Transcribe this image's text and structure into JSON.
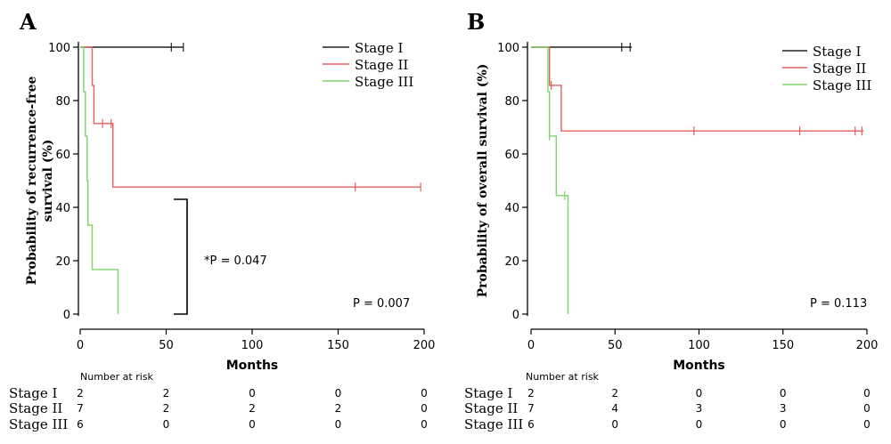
{
  "chart_data": [
    {
      "type": "line",
      "subtype": "kaplan-meier step",
      "panel_label": "A",
      "xlabel": "Months",
      "ylabel_line1": "Probability of recurrence-free",
      "ylabel_line2": "survival (%)",
      "xlim": [
        0,
        200
      ],
      "ylim": [
        0,
        100
      ],
      "xticks": [
        0,
        50,
        100,
        150,
        200
      ],
      "yticks": [
        0,
        20,
        40,
        60,
        80,
        100
      ],
      "grid": false,
      "legend_position": "top-right",
      "series": [
        {
          "name": "Stage I",
          "color": "#222222",
          "steps": [
            [
              0,
              100
            ],
            [
              60,
              100
            ]
          ],
          "censored": [
            [
              53,
              100
            ],
            [
              60,
              100
            ]
          ]
        },
        {
          "name": "Stage II",
          "color": "#e06060",
          "steps": [
            [
              0,
              100
            ],
            [
              7,
              100
            ],
            [
              7,
              85.7
            ],
            [
              8,
              85.7
            ],
            [
              8,
              71.4
            ],
            [
              19,
              71.4
            ],
            [
              19,
              47.6
            ],
            [
              198,
              47.6
            ]
          ],
          "censored": [
            [
              13,
              71.4
            ],
            [
              18,
              71.4
            ],
            [
              160,
              47.6
            ],
            [
              198,
              47.6
            ]
          ]
        },
        {
          "name": "Stage III",
          "color": "#7ed36b",
          "steps": [
            [
              0,
              100
            ],
            [
              2,
              100
            ],
            [
              2,
              83.3
            ],
            [
              3,
              83.3
            ],
            [
              3,
              66.7
            ],
            [
              4,
              66.7
            ],
            [
              4,
              50
            ],
            [
              4.5,
              50
            ],
            [
              4.5,
              33.3
            ],
            [
              7,
              33.3
            ],
            [
              7,
              16.7
            ],
            [
              22,
              16.7
            ],
            [
              22,
              0
            ]
          ],
          "censored": []
        }
      ],
      "annotations": {
        "pairwise_p": "*P = 0.047",
        "p_value": "P = 0.007",
        "bracket_y": [
          0,
          43
        ]
      },
      "risk_table": {
        "title": "Number at risk",
        "timepoints": [
          0,
          50,
          100,
          150,
          200
        ],
        "rows": [
          {
            "label": "Stage I",
            "values": [
              "2",
              "2",
              "0",
              "0",
              "0"
            ]
          },
          {
            "label": "Stage II",
            "values": [
              "7",
              "2",
              "2",
              "2",
              "0"
            ]
          },
          {
            "label": "Stage III",
            "values": [
              "6",
              "0",
              "0",
              "0",
              "0"
            ]
          }
        ]
      }
    },
    {
      "type": "line",
      "subtype": "kaplan-meier step",
      "panel_label": "B",
      "xlabel": "Months",
      "ylabel_line1": "Probability of overall survival (%)",
      "ylabel_line2": "",
      "xlim": [
        0,
        200
      ],
      "ylim": [
        0,
        100
      ],
      "xticks": [
        0,
        50,
        100,
        150,
        200
      ],
      "yticks": [
        0,
        20,
        40,
        60,
        80,
        100
      ],
      "grid": false,
      "legend_position": "top-right",
      "series": [
        {
          "name": "Stage I",
          "color": "#222222",
          "steps": [
            [
              0,
              100
            ],
            [
              60,
              100
            ]
          ],
          "censored": [
            [
              54,
              100
            ],
            [
              59,
              100
            ]
          ]
        },
        {
          "name": "Stage II",
          "color": "#e06060",
          "steps": [
            [
              0,
              100
            ],
            [
              11,
              100
            ],
            [
              11,
              85.7
            ],
            [
              18,
              85.7
            ],
            [
              18,
              68.6
            ],
            [
              198,
              68.6
            ]
          ],
          "censored": [
            [
              12,
              85.7
            ],
            [
              97,
              68.6
            ],
            [
              160,
              68.6
            ],
            [
              193,
              68.6
            ],
            [
              197,
              68.6
            ]
          ]
        },
        {
          "name": "Stage III",
          "color": "#7ed36b",
          "steps": [
            [
              0,
              100
            ],
            [
              10,
              100
            ],
            [
              10,
              83.3
            ],
            [
              11,
              83.3
            ],
            [
              11,
              66.7
            ],
            [
              15,
              66.7
            ],
            [
              15,
              44.4
            ],
            [
              22,
              44.4
            ],
            [
              22,
              0
            ]
          ],
          "censored": [
            [
              11,
              66.7
            ],
            [
              20,
              44.4
            ]
          ]
        }
      ],
      "annotations": {
        "pairwise_p": "",
        "p_value": "P = 0.113",
        "bracket_y": null
      },
      "risk_table": {
        "title": "Number at risk",
        "timepoints": [
          0,
          50,
          100,
          150,
          200
        ],
        "rows": [
          {
            "label": "Stage I",
            "values": [
              "2",
              "2",
              "0",
              "0",
              "0"
            ]
          },
          {
            "label": "Stage II",
            "values": [
              "7",
              "4",
              "3",
              "3",
              "0"
            ]
          },
          {
            "label": "Stage III",
            "values": [
              "6",
              "0",
              "0",
              "0",
              "0"
            ]
          }
        ]
      }
    }
  ]
}
